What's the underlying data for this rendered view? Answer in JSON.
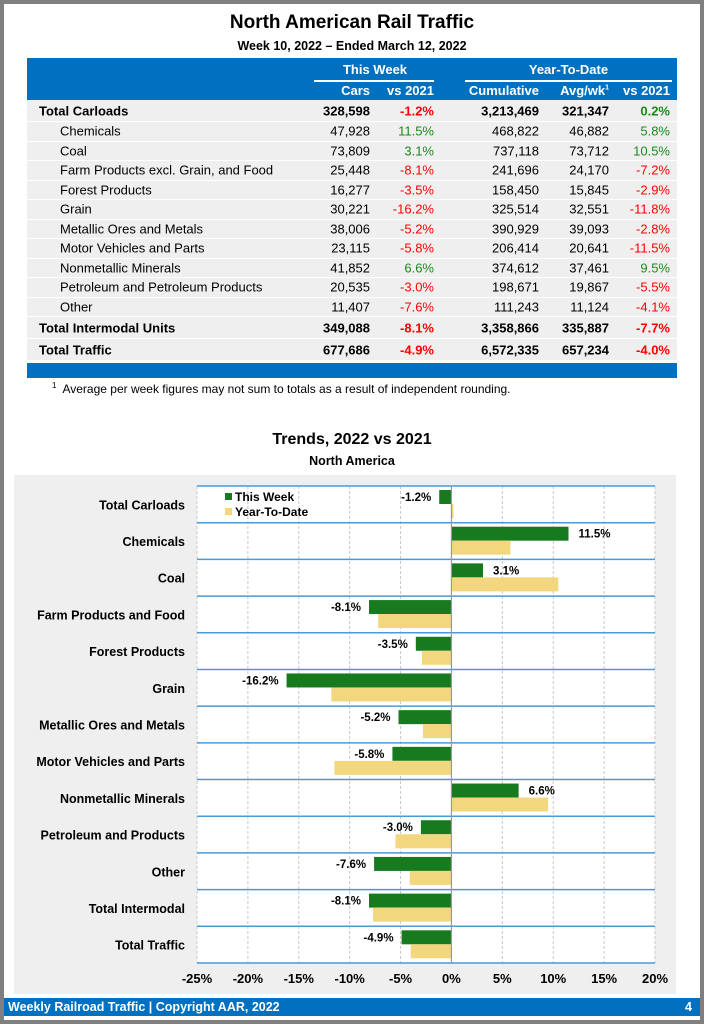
{
  "title": "North American Rail Traffic",
  "subtitle": "Week 10, 2022 – Ended March 12, 2022",
  "table": {
    "group_this_week": "This Week",
    "group_ytd": "Year-To-Date",
    "col_cars": "Cars",
    "col_vs1": "vs 2021",
    "col_cum": "Cumulative",
    "col_avg": "Avg/wk",
    "col_avg_sup": "1",
    "col_vs2": "vs 2021",
    "rows": [
      {
        "label": "Total Carloads",
        "cars": "328,598",
        "vs": "-1.2%",
        "cum": "3,213,469",
        "avg": "321,347",
        "vs2": "0.2%",
        "bold": true
      },
      {
        "label": "Chemicals",
        "cars": "47,928",
        "vs": "11.5%",
        "cum": "468,822",
        "avg": "46,882",
        "vs2": "5.8%"
      },
      {
        "label": "Coal",
        "cars": "73,809",
        "vs": "3.1%",
        "cum": "737,118",
        "avg": "73,712",
        "vs2": "10.5%"
      },
      {
        "label": "Farm Products excl. Grain, and Food",
        "cars": "25,448",
        "vs": "-8.1%",
        "cum": "241,696",
        "avg": "24,170",
        "vs2": "-7.2%"
      },
      {
        "label": "Forest Products",
        "cars": "16,277",
        "vs": "-3.5%",
        "cum": "158,450",
        "avg": "15,845",
        "vs2": "-2.9%"
      },
      {
        "label": "Grain",
        "cars": "30,221",
        "vs": "-16.2%",
        "cum": "325,514",
        "avg": "32,551",
        "vs2": "-11.8%"
      },
      {
        "label": "Metallic Ores and Metals",
        "cars": "38,006",
        "vs": "-5.2%",
        "cum": "390,929",
        "avg": "39,093",
        "vs2": "-2.8%"
      },
      {
        "label": "Motor Vehicles and Parts",
        "cars": "23,115",
        "vs": "-5.8%",
        "cum": "206,414",
        "avg": "20,641",
        "vs2": "-11.5%"
      },
      {
        "label": "Nonmetallic Minerals",
        "cars": "41,852",
        "vs": "6.6%",
        "cum": "374,612",
        "avg": "37,461",
        "vs2": "9.5%"
      },
      {
        "label": "Petroleum and Petroleum Products",
        "cars": "20,535",
        "vs": "-3.0%",
        "cum": "198,671",
        "avg": "19,867",
        "vs2": "-5.5%"
      },
      {
        "label": "Other",
        "cars": "11,407",
        "vs": "-7.6%",
        "cum": "111,243",
        "avg": "11,124",
        "vs2": "-4.1%"
      },
      {
        "label": "Total Intermodal Units",
        "cars": "349,088",
        "vs": "-8.1%",
        "cum": "3,358,866",
        "avg": "335,887",
        "vs2": "-7.7%",
        "bold": true
      },
      {
        "label": "Total Traffic",
        "cars": "677,686",
        "vs": "-4.9%",
        "cum": "6,572,335",
        "avg": "657,234",
        "vs2": "-4.0%",
        "bold": true
      }
    ]
  },
  "footnote_mark": "1",
  "footnote": "Average per week figures may not sum to totals as a result of independent rounding.",
  "chart_data": {
    "type": "bar",
    "orientation": "horizontal",
    "title": "Trends, 2022 vs 2021",
    "subtitle": "North America",
    "categories": [
      "Total Carloads",
      "Chemicals",
      "Coal",
      "Farm Products and Food",
      "Forest Products",
      "Grain",
      "Metallic Ores and Metals",
      "Motor Vehicles and Parts",
      "Nonmetallic Minerals",
      "Petroleum and Products",
      "Other",
      "Total Intermodal",
      "Total Traffic"
    ],
    "series": [
      {
        "name": "This Week",
        "color": "#177a1f",
        "values": [
          -1.2,
          11.5,
          3.1,
          -8.1,
          -3.5,
          -16.2,
          -5.2,
          -5.8,
          6.6,
          -3.0,
          -7.6,
          -8.1,
          -4.9
        ]
      },
      {
        "name": "Year-To-Date",
        "color": "#f2d77e",
        "values": [
          0.2,
          5.8,
          10.5,
          -7.2,
          -2.9,
          -11.8,
          -2.8,
          -11.5,
          9.5,
          -5.5,
          -4.1,
          -7.7,
          -4.0
        ]
      }
    ],
    "data_labels": [
      "-1.2%",
      "11.5%",
      "3.1%",
      "-8.1%",
      "-3.5%",
      "-16.2%",
      "-5.2%",
      "-5.8%",
      "6.6%",
      "-3.0%",
      "-7.6%",
      "-8.1%",
      "-4.9%"
    ],
    "xlim": [
      -25,
      20
    ],
    "xticks": [
      "-25%",
      "-20%",
      "-15%",
      "-10%",
      "-5%",
      "0%",
      "5%",
      "10%",
      "15%",
      "20%"
    ],
    "legend": "top-left",
    "grid": true
  },
  "footer": {
    "left": "Weekly Railroad Traffic | Copyright AAR, 2022",
    "page": "4"
  }
}
